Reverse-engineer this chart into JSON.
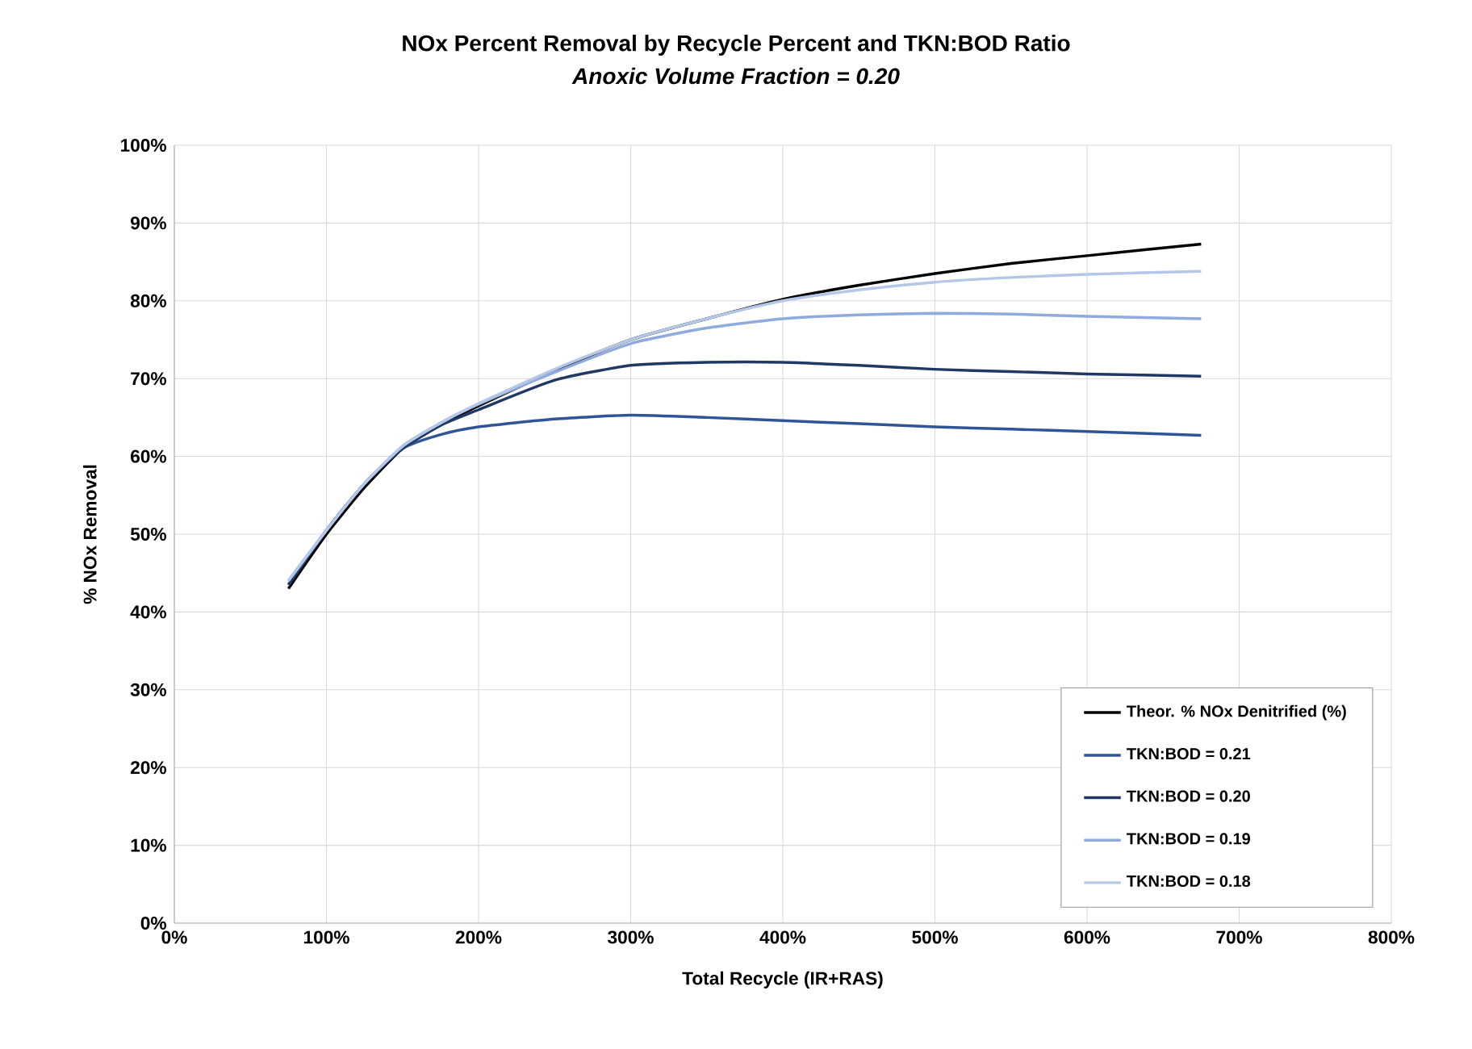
{
  "chart_data": {
    "type": "line",
    "title": "NOx Percent Removal by Recycle Percent and TKN:BOD Ratio",
    "subtitle": "Anoxic Volume Fraction = 0.20",
    "xlabel": "Total Recycle (IR+RAS)",
    "ylabel": "% NOx Removal",
    "x": [
      75,
      100,
      125,
      150,
      175,
      200,
      250,
      300,
      350,
      400,
      450,
      500,
      550,
      600,
      675
    ],
    "series": [
      {
        "name": "Theor. % NOx Denitrified (%)",
        "color": "#000000",
        "values": [
          43,
          50,
          56,
          61,
          64,
          66.5,
          71,
          75,
          77.7,
          80.2,
          82,
          83.5,
          84.8,
          85.8,
          87.3
        ]
      },
      {
        "name": "TKN:BOD = 0.21",
        "color": "#2f5597",
        "values": [
          43.5,
          50.5,
          56.5,
          61,
          62.8,
          63.8,
          64.8,
          65.3,
          65,
          64.6,
          64.2,
          63.8,
          63.5,
          63.2,
          62.7
        ]
      },
      {
        "name": "TKN:BOD = 0.20",
        "color": "#203864",
        "values": [
          43.5,
          50.5,
          56.5,
          61,
          64,
          66,
          69.8,
          71.7,
          72.1,
          72.1,
          71.7,
          71.2,
          70.9,
          70.6,
          70.3
        ]
      },
      {
        "name": "TKN:BOD = 0.19",
        "color": "#8faadc",
        "values": [
          44,
          50.5,
          56.5,
          61.3,
          64.3,
          66.7,
          70.8,
          74.5,
          76.5,
          77.7,
          78.2,
          78.4,
          78.3,
          78,
          77.7
        ]
      },
      {
        "name": "TKN:BOD = 0.18",
        "color": "#b4c7e7",
        "values": [
          44,
          50.5,
          56.5,
          61.3,
          64.3,
          66.8,
          71.2,
          75,
          77.7,
          80,
          81.4,
          82.4,
          83,
          83.4,
          83.8
        ]
      }
    ],
    "xlim": [
      0,
      800
    ],
    "ylim": [
      0,
      100
    ],
    "xticks": [
      {
        "value": 0,
        "label": "0%"
      },
      {
        "value": 100,
        "label": "100%"
      },
      {
        "value": 200,
        "label": "200%"
      },
      {
        "value": 300,
        "label": "300%"
      },
      {
        "value": 400,
        "label": "400%"
      },
      {
        "value": 500,
        "label": "500%"
      },
      {
        "value": 600,
        "label": "600%"
      },
      {
        "value": 700,
        "label": "700%"
      },
      {
        "value": 800,
        "label": "800%"
      }
    ],
    "yticks": [
      {
        "value": 0,
        "label": "0%"
      },
      {
        "value": 10,
        "label": "10%"
      },
      {
        "value": 20,
        "label": "20%"
      },
      {
        "value": 30,
        "label": "30%"
      },
      {
        "value": 40,
        "label": "40%"
      },
      {
        "value": 50,
        "label": "50%"
      },
      {
        "value": 60,
        "label": "60%"
      },
      {
        "value": 70,
        "label": "70%"
      },
      {
        "value": 80,
        "label": "80%"
      },
      {
        "value": 90,
        "label": "90%"
      },
      {
        "value": 100,
        "label": "100%"
      }
    ],
    "grid": true,
    "legend": "bottom right",
    "marker": "none",
    "line_style": "solid"
  }
}
